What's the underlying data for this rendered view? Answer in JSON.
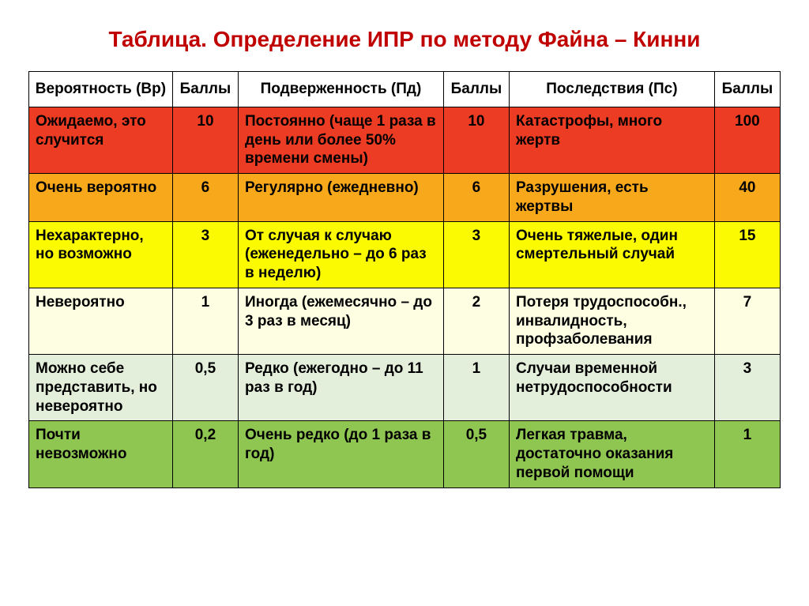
{
  "title": {
    "text": "Таблица. Определение ИПР по методу Файна – Кинни",
    "color": "#c00000",
    "fontsize": 28
  },
  "table": {
    "header_bg": "#ffffff",
    "border_color": "#000000",
    "cell_fontsize": 19,
    "cell_fontweight": "700",
    "columns": [
      {
        "label": "Вероятность (Вр)",
        "width_pct": 17.5
      },
      {
        "label": "Баллы",
        "width_pct": 8
      },
      {
        "label": "Подверженность (Пд)",
        "width_pct": 25
      },
      {
        "label": "Баллы",
        "width_pct": 8
      },
      {
        "label": "Последствия (Пс)",
        "width_pct": 25
      },
      {
        "label": "Баллы",
        "width_pct": 8
      }
    ],
    "rows": [
      {
        "bg": "#ec3c23",
        "probability": "Ожидаемо, это случится",
        "prob_points": "10",
        "exposure": "Постоянно (чаще 1 раза в день или более 50% времени смены)",
        "exp_points": "10",
        "consequence": "Катастрофы, много жертв",
        "cons_points": "100"
      },
      {
        "bg": "#f8a81b",
        "probability": "Очень вероятно",
        "prob_points": "6",
        "exposure": "Регулярно (ежедневно)",
        "exp_points": "6",
        "consequence": "Разрушения, есть жертвы",
        "cons_points": "40"
      },
      {
        "bg": "#fcfa03",
        "probability": "Нехарактерно, но возможно",
        "prob_points": "3",
        "exposure": "От случая к случаю (еженедельно – до 6 раз в неделю)",
        "exp_points": "3",
        "consequence": "Очень тяжелые, один смертельный случай",
        "cons_points": "15"
      },
      {
        "bg": "#feffe2",
        "probability": "Невероятно",
        "prob_points": "1",
        "exposure": "Иногда (ежемесячно – до 3 раз в месяц)",
        "exp_points": "2",
        "consequence": "Потеря трудоспособн., инвалидность, профзаболевания",
        "cons_points": "7"
      },
      {
        "bg": "#e3eedb",
        "probability": "Можно себе представить, но невероятно",
        "prob_points": "0,5",
        "exposure": "Редко (ежегодно – до 11 раз в год)",
        "exp_points": "1",
        "consequence": "Случаи временной нетрудоспособности",
        "cons_points": "3"
      },
      {
        "bg": "#8fc551",
        "probability": "Почти невозможно",
        "prob_points": "0,2",
        "exposure": "Очень редко (до 1 раза в год)",
        "exp_points": "0,5",
        "consequence": "Легкая травма, достаточно оказания первой помощи",
        "cons_points": "1"
      }
    ]
  }
}
